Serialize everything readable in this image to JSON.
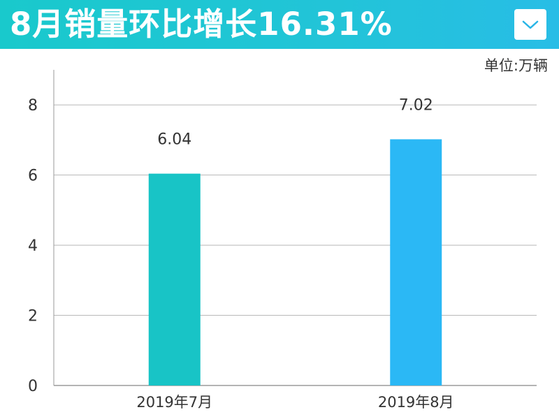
{
  "header": {
    "title": "8月销量环比增长16.31%",
    "dropdown_icon": "chevron-down-icon",
    "background_color": "#1fc6d6"
  },
  "unit_label": "单位:万辆",
  "chart_data": {
    "type": "bar",
    "categories": [
      "2019年7月",
      "2019年8月"
    ],
    "values": [
      6.04,
      7.02
    ],
    "data_labels": [
      "6.04",
      "7.02"
    ],
    "bar_colors": [
      "#18c4c6",
      "#2bb8f5"
    ],
    "ylim": [
      0,
      9
    ],
    "yticks": [
      0,
      2,
      4,
      6,
      8
    ],
    "ytick_labels": [
      "0",
      "2",
      "4",
      "6",
      "8"
    ],
    "grid": true,
    "title": "",
    "xlabel": "",
    "ylabel": ""
  }
}
